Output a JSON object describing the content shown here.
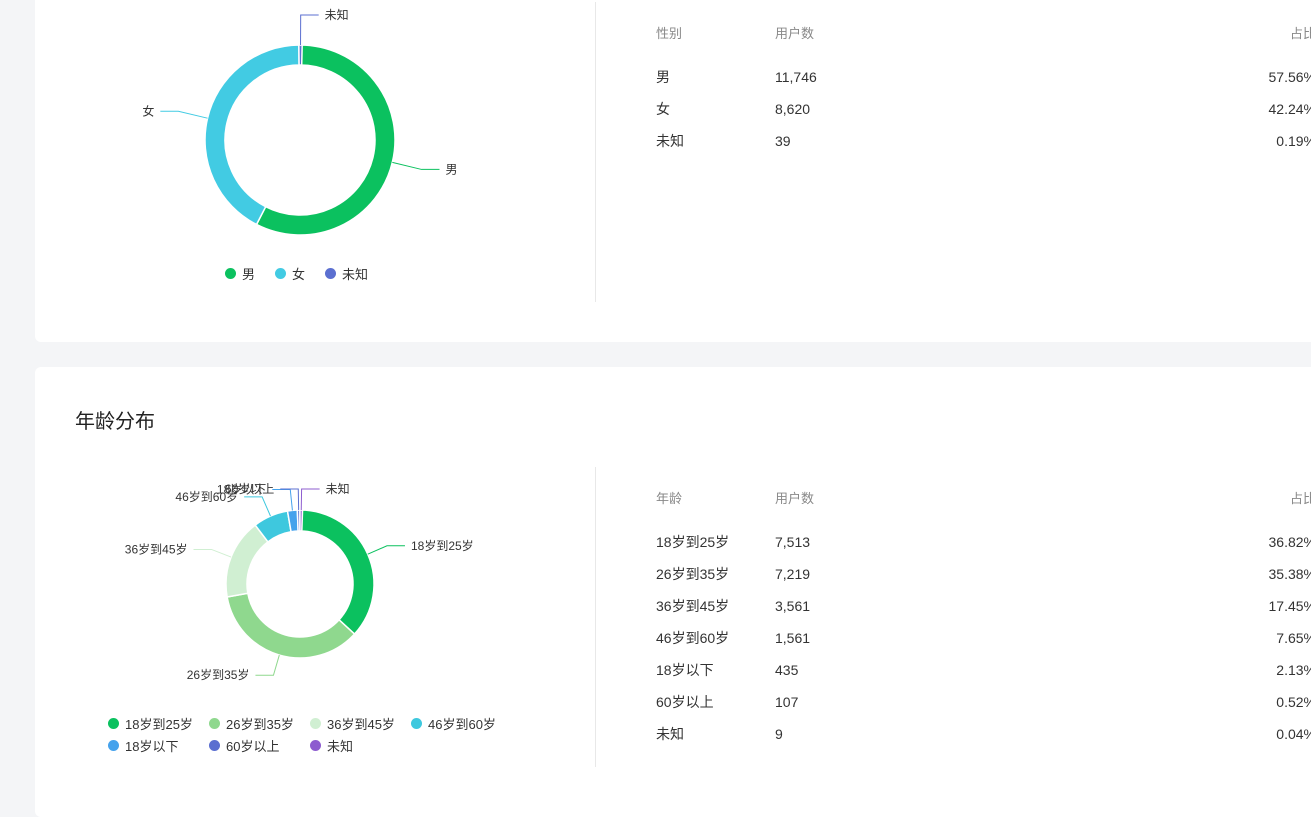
{
  "gender": {
    "legend_colors": [
      "#0bc15f",
      "#42cbe3",
      "#5b6fd0"
    ],
    "chart_data": {
      "type": "pie",
      "donut": true,
      "labels": [
        "男",
        "女",
        "未知"
      ],
      "values": [
        11746,
        8620,
        39
      ],
      "colors": [
        "#0bc15f",
        "#42cbe3",
        "#5b6fd0"
      ],
      "legend": "bottom"
    },
    "table": {
      "headers": [
        "性别",
        "用户数",
        "占比"
      ],
      "rows": [
        [
          "男",
          "11,746",
          "57.56%"
        ],
        [
          "女",
          "8,620",
          "42.24%"
        ],
        [
          "未知",
          "39",
          "0.19%"
        ]
      ]
    }
  },
  "age": {
    "title": "年龄分布",
    "chart_data": {
      "type": "pie",
      "donut": true,
      "labels": [
        "18岁到25岁",
        "26岁到35岁",
        "36岁到45岁",
        "46岁到60岁",
        "18岁以下",
        "60岁以上",
        "未知"
      ],
      "values": [
        7513,
        7219,
        3561,
        1561,
        435,
        107,
        9
      ],
      "colors": [
        "#0bc15f",
        "#8fd88e",
        "#d0efd2",
        "#3ec8de",
        "#45a2ec",
        "#5b6fd0",
        "#8d5ccf"
      ],
      "legend": "bottom"
    },
    "table": {
      "headers": [
        "年龄",
        "用户数",
        "占比"
      ],
      "rows": [
        [
          "18岁到25岁",
          "7,513",
          "36.82%"
        ],
        [
          "26岁到35岁",
          "7,219",
          "35.38%"
        ],
        [
          "36岁到45岁",
          "3,561",
          "17.45%"
        ],
        [
          "46岁到60岁",
          "1,561",
          "7.65%"
        ],
        [
          "18岁以下",
          "435",
          "2.13%"
        ],
        [
          "60岁以上",
          "107",
          "0.52%"
        ],
        [
          "未知",
          "9",
          "0.04%"
        ]
      ]
    }
  }
}
